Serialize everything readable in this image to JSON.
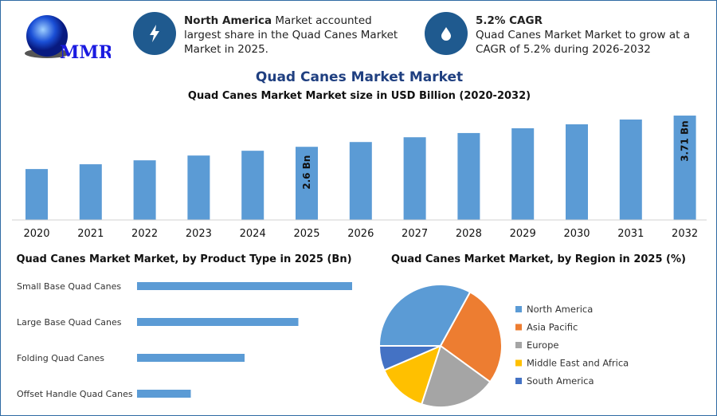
{
  "logo": {
    "text": "MMR"
  },
  "info_cards": [
    {
      "icon": "lightning-icon",
      "bold": "North America",
      "text": " Market accounted largest share in the Quad Canes Market Market in 2025."
    },
    {
      "icon": "drop-icon",
      "bold": "5.2% CAGR",
      "text": "Quad Canes Market Market to grow at a CAGR of 5.2% during 2026-2032"
    }
  ],
  "colors": {
    "bar": "#5b9bd5",
    "accent": "#1f5a8f",
    "title": "#1f3f80"
  },
  "chart_data": [
    {
      "type": "bar",
      "title": "Quad Canes Market Market",
      "subtitle": "Quad Canes Market Market size in USD Billion (2020-2032)",
      "categories": [
        "2020",
        "2021",
        "2022",
        "2023",
        "2024",
        "2025",
        "2026",
        "2027",
        "2028",
        "2029",
        "2030",
        "2031",
        "2032"
      ],
      "values": [
        1.81,
        1.98,
        2.12,
        2.29,
        2.46,
        2.6,
        2.77,
        2.94,
        3.09,
        3.26,
        3.4,
        3.57,
        3.71
      ],
      "data_labels": {
        "2025": "2.6 Bn",
        "2032": "3.71 Bn"
      },
      "grid": false
    },
    {
      "type": "bar",
      "orientation": "horizontal",
      "title": "Quad Canes Market Market, by Product Type in 2025 (Bn)",
      "categories": [
        "Small Base Quad Canes",
        "Large Base Quad Canes",
        "Folding Quad Canes",
        "Offset Handle Quad Canes"
      ],
      "values": [
        1.04,
        0.78,
        0.52,
        0.26
      ]
    },
    {
      "type": "pie",
      "title": "Quad Canes Market Market, by Region in 2025 (%)",
      "labels": [
        "North America",
        "Asia Pacific",
        "Europe",
        "Middle East and Africa",
        "South America"
      ],
      "values": [
        33,
        27,
        20,
        13.5,
        6.5
      ],
      "colors": [
        "#5b9bd5",
        "#ed7d31",
        "#a5a5a5",
        "#ffc000",
        "#4472c4"
      ],
      "legend": "right"
    }
  ]
}
